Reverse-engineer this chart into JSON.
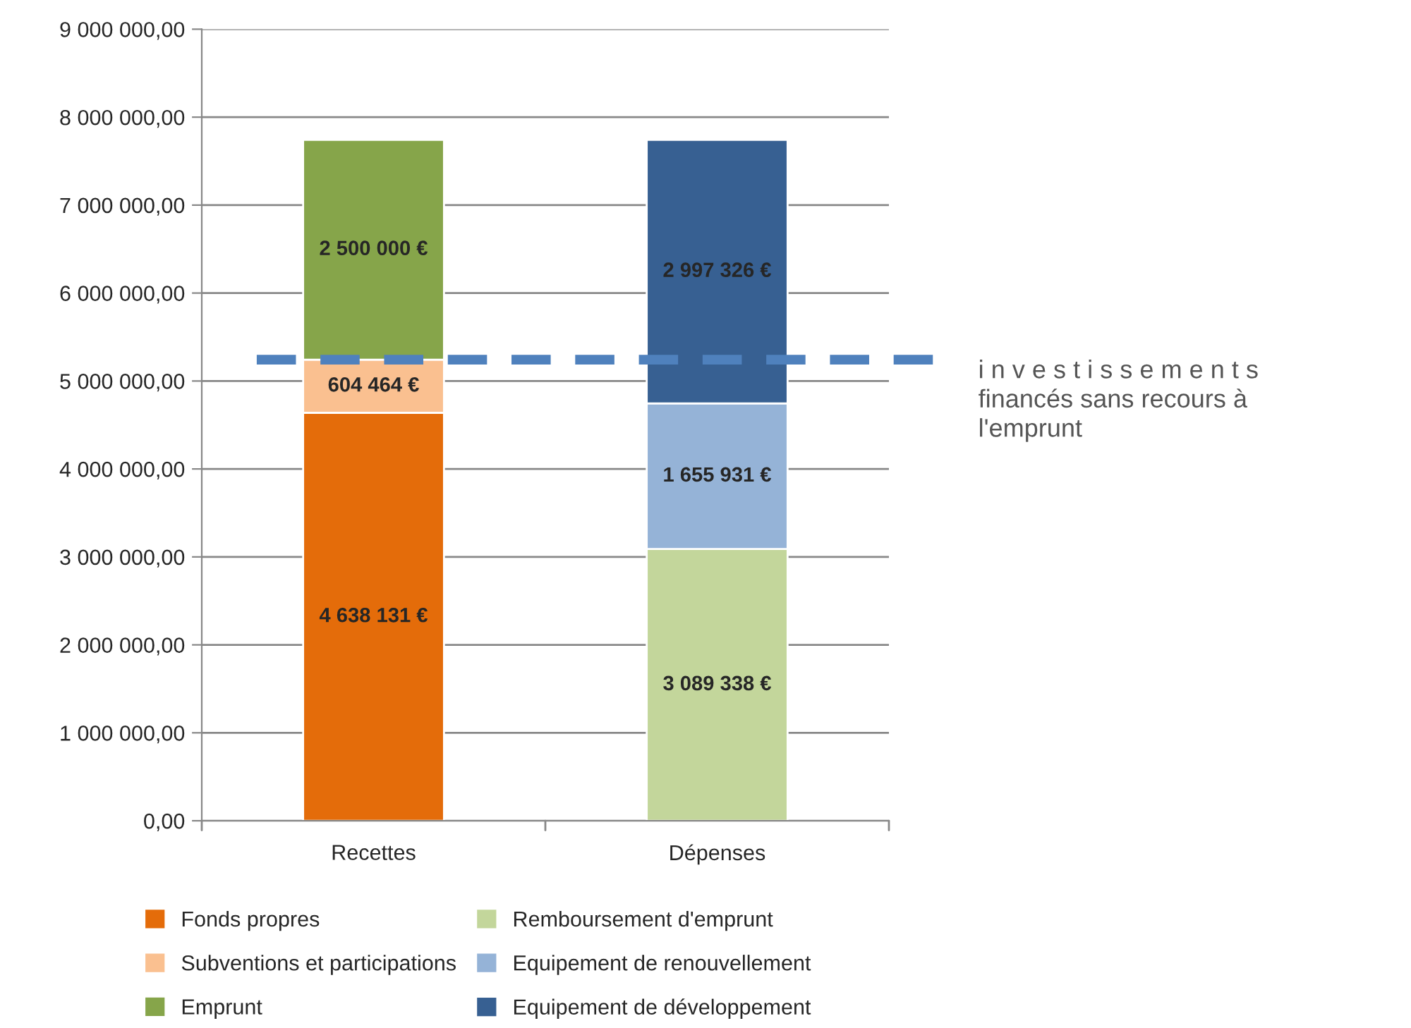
{
  "chart_data": {
    "type": "bar",
    "stacked": true,
    "categories": [
      "Recettes",
      "Dépenses"
    ],
    "series": [
      {
        "name": "Fonds propres",
        "color": "#e46c0a",
        "values": [
          4638131,
          null
        ],
        "value_labels": [
          "4 638 131 €",
          null
        ]
      },
      {
        "name": "Subventions et participations",
        "color": "#fac090",
        "values": [
          604464,
          null
        ],
        "value_labels": [
          "604 464 €",
          null
        ]
      },
      {
        "name": "Emprunt",
        "color": "#86a54a",
        "values": [
          2500000,
          null
        ],
        "value_labels": [
          "2 500 000 €",
          null
        ]
      },
      {
        "name": "Remboursement d'emprunt",
        "color": "#c3d69b",
        "values": [
          null,
          3089338
        ],
        "value_labels": [
          null,
          "3 089 338 €"
        ]
      },
      {
        "name": "Equipement de renouvellement",
        "color": "#95b3d7",
        "values": [
          null,
          1655931
        ],
        "value_labels": [
          null,
          "1 655 931 €"
        ]
      },
      {
        "name": "Equipement de développement",
        "color": "#376092",
        "values": [
          null,
          2997326
        ],
        "value_labels": [
          null,
          "2 997 326 €"
        ]
      }
    ],
    "ylim": [
      0,
      9000000
    ],
    "yticks": [
      {
        "value": 0,
        "label": "0,00"
      },
      {
        "value": 1000000,
        "label": "1 000 000,00"
      },
      {
        "value": 2000000,
        "label": "2 000 000,00"
      },
      {
        "value": 3000000,
        "label": "3 000 000,00"
      },
      {
        "value": 4000000,
        "label": "4 000 000,00"
      },
      {
        "value": 5000000,
        "label": "5 000 000,00"
      },
      {
        "value": 6000000,
        "label": "6 000 000,00"
      },
      {
        "value": 7000000,
        "label": "7 000 000,00"
      },
      {
        "value": 8000000,
        "label": "8 000 000,00"
      },
      {
        "value": 9000000,
        "label": "9 000 000,00"
      }
    ],
    "grid": "y",
    "legend": "bottom",
    "ref_lines": [
      {
        "axis": "y",
        "value": 5242595,
        "label": "i n v e s t i s s e m e n t s\nfinancés sans recours à\nl'emprunt",
        "color": "#4f81bd",
        "line_style": "dashed"
      }
    ]
  }
}
